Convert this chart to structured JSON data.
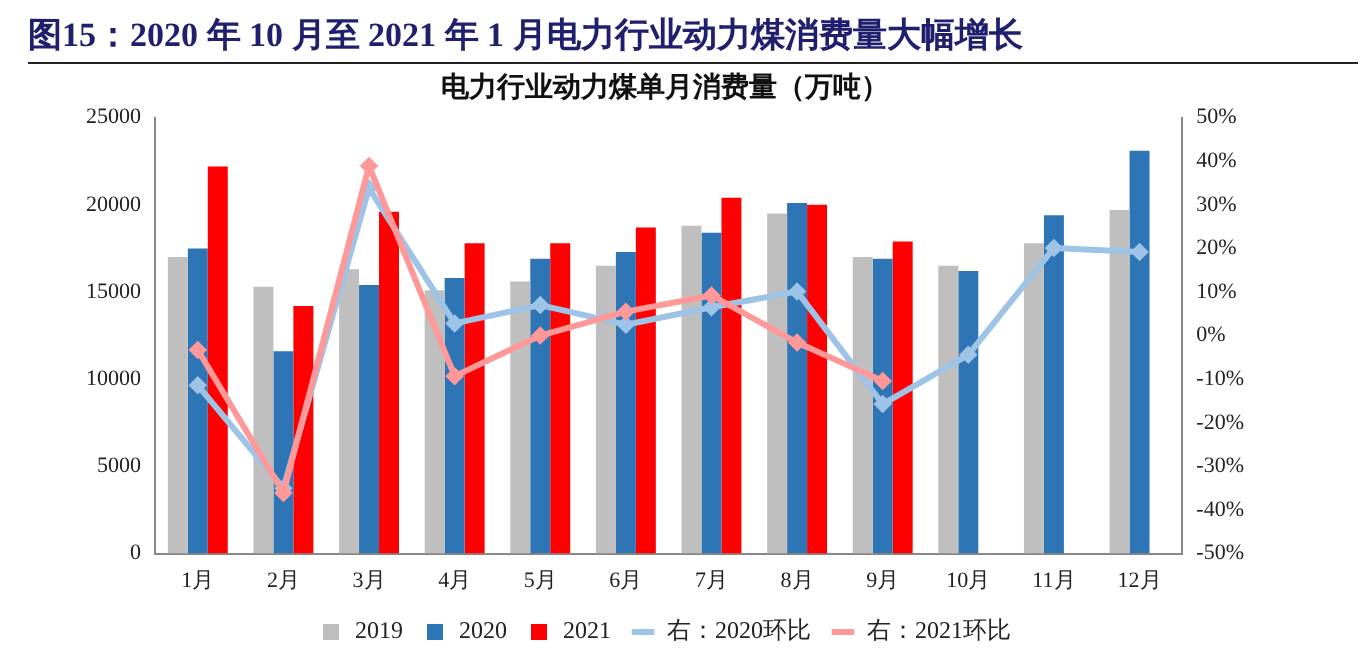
{
  "chart_data": {
    "type": "bar",
    "title": "图15：2020 年 10 月至 2021 年 1 月电力行业动力煤消费量大幅增长",
    "subtitle": "电力行业动力煤单月消费量（万吨）",
    "categories": [
      "1月",
      "2月",
      "3月",
      "4月",
      "5月",
      "6月",
      "7月",
      "8月",
      "9月",
      "10月",
      "11月",
      "12月"
    ],
    "series": [
      {
        "name": "2019",
        "color": "#bfbfbf",
        "values": [
          17000,
          15300,
          16300,
          15100,
          15600,
          16500,
          18800,
          19500,
          17000,
          16500,
          17800,
          19700
        ]
      },
      {
        "name": "2020",
        "color": "#2e75b6",
        "values": [
          17500,
          11600,
          15400,
          15800,
          16900,
          17300,
          18400,
          20100,
          16900,
          16200,
          19400,
          23100
        ]
      },
      {
        "name": "2021",
        "color": "#ff0000",
        "values": [
          22200,
          14200,
          19600,
          17800,
          17800,
          18700,
          20400,
          20000,
          17900,
          null,
          null,
          null
        ]
      },
      {
        "name": "右：2020环比",
        "type": "line",
        "axis": "y2",
        "color": "#9dc3e6",
        "values": [
          -11.4,
          -35,
          33.8,
          2.8,
          7.0,
          2.5,
          6.5,
          10.1,
          -15.7,
          -4.4,
          20.1,
          19.2
        ]
      },
      {
        "name": "右：2021环比",
        "type": "line",
        "axis": "y2",
        "color": "#ff9999",
        "values": [
          -3.3,
          -36.1,
          38.9,
          -9.3,
          0,
          5.5,
          9.2,
          -1.6,
          -10.4,
          null,
          null,
          null
        ]
      }
    ],
    "ylim": [
      0,
      25000
    ],
    "yticks": [
      0,
      5000,
      10000,
      15000,
      20000,
      25000
    ],
    "y2lim": [
      -50,
      50
    ],
    "y2ticks": [
      {
        "value": -50,
        "label": "-50%"
      },
      {
        "value": -40,
        "label": "-40%"
      },
      {
        "value": -30,
        "label": "-30%"
      },
      {
        "value": -20,
        "label": "-20%"
      },
      {
        "value": -10,
        "label": "-10%"
      },
      {
        "value": 0,
        "label": "0%"
      },
      {
        "value": 10,
        "label": "10%"
      },
      {
        "value": 20,
        "label": "20%"
      },
      {
        "value": 30,
        "label": "30%"
      },
      {
        "value": 40,
        "label": "40%"
      },
      {
        "value": 50,
        "label": "50%"
      }
    ],
    "grid": false,
    "legend": "bottom",
    "marker": "diamond",
    "line_style": "solid"
  }
}
